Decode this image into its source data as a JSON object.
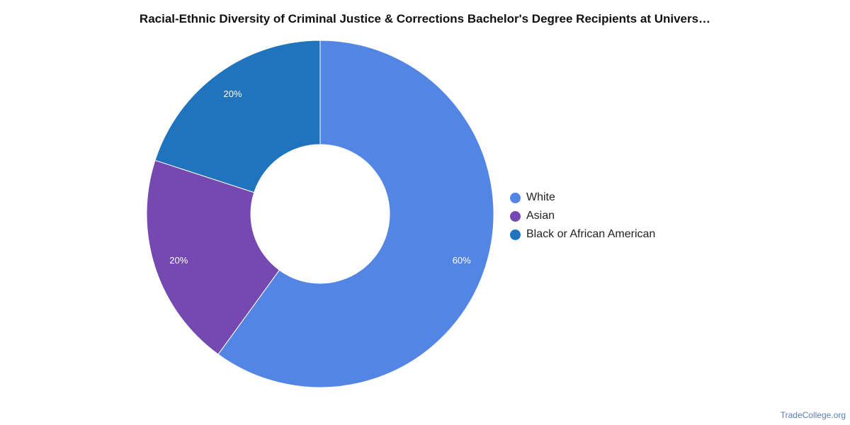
{
  "chart_data": {
    "type": "pie",
    "title": "Racial-Ethnic Diversity of Criminal Justice & Corrections Bachelor's Degree Recipients at Univers…",
    "donut": true,
    "categories": [
      "White",
      "Asian",
      "Black or African American"
    ],
    "values": [
      60,
      20,
      20
    ],
    "labels": [
      "60%",
      "20%",
      "20%"
    ],
    "colors": [
      "#5386e4",
      "#7549b1",
      "#1f74bd"
    ],
    "legend_position": "right"
  },
  "watermark": "TradeCollege.org"
}
